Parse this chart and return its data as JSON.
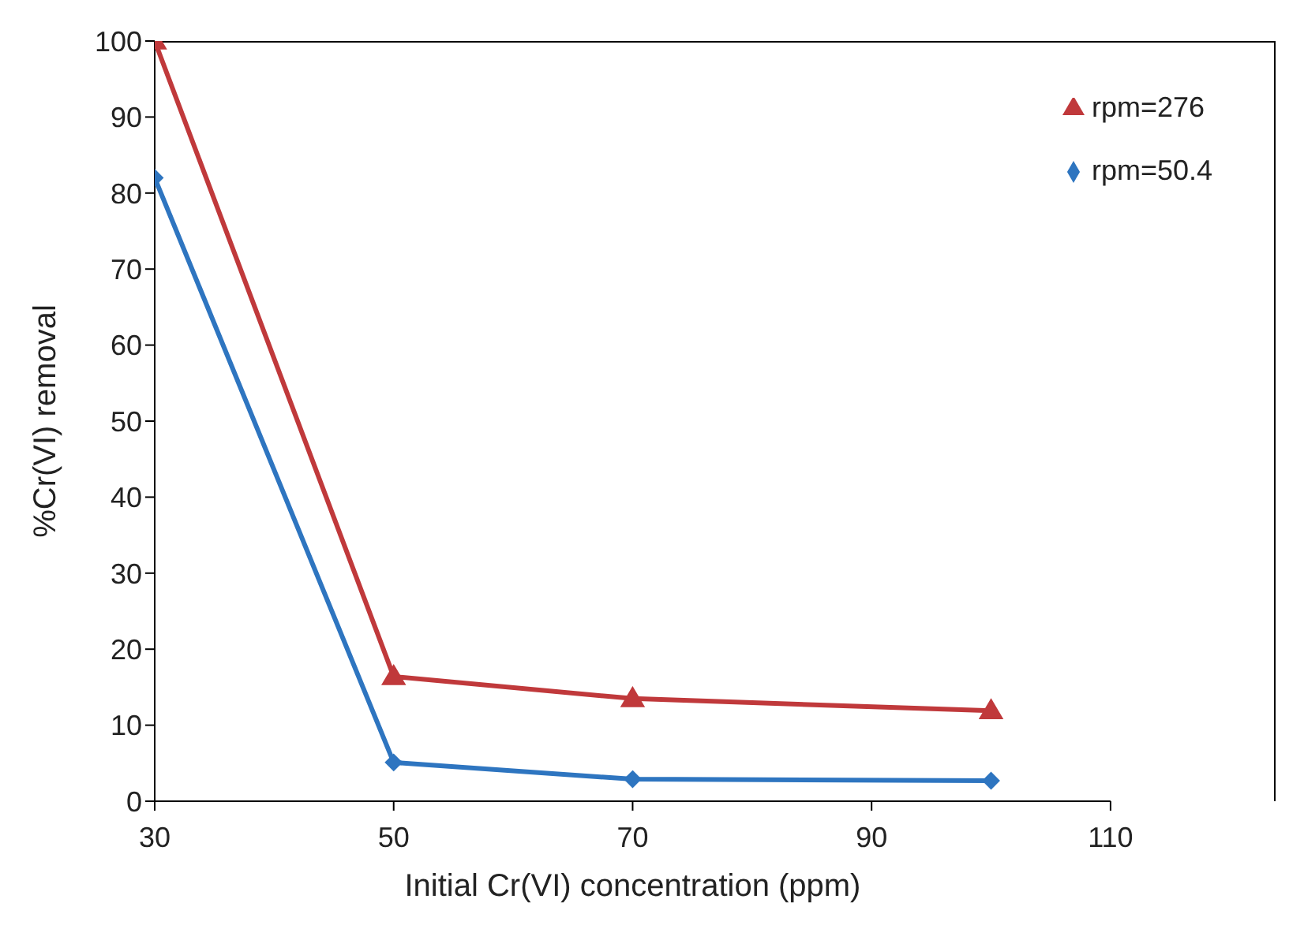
{
  "chart_data": {
    "type": "line",
    "xlabel": "Initial Cr(VI) concentration (ppm)",
    "ylabel": "%Cr(VI) removal",
    "xlim": [
      30,
      110
    ],
    "xticks": [
      30,
      50,
      70,
      90,
      110
    ],
    "ylim": [
      0,
      100
    ],
    "yticks": [
      0,
      10,
      20,
      30,
      40,
      50,
      60,
      70,
      80,
      90,
      100
    ],
    "grid": false,
    "legend": "top right",
    "line_style": "solid",
    "series": [
      {
        "name": "rpm=276",
        "color": "#c0393b",
        "marker": "triangle",
        "x": [
          30,
          50,
          70,
          100
        ],
        "values": [
          100,
          16.4,
          13.5,
          11.9
        ]
      },
      {
        "name": "rpm=50.4",
        "color": "#2e75c0",
        "marker": "diamond",
        "x": [
          30,
          50,
          70,
          100
        ],
        "values": [
          82,
          5.1,
          2.9,
          2.7
        ]
      }
    ]
  }
}
